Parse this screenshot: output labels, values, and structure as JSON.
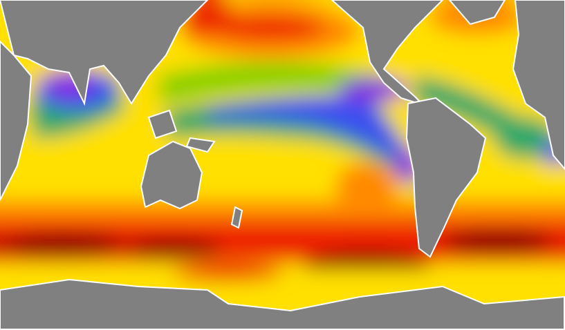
{
  "map": {
    "land_color": "#808080",
    "coast_ice_color": "#ffffff",
    "palette": {
      "lowest": "#8a2be2",
      "low": "#3c50f0",
      "low_mid": "#2aa86a",
      "mid": "#7fd000",
      "mid_high": "#ffe000",
      "high": "#ff8a00",
      "higher": "#ee2200",
      "highest": "#8b0a00"
    }
  }
}
